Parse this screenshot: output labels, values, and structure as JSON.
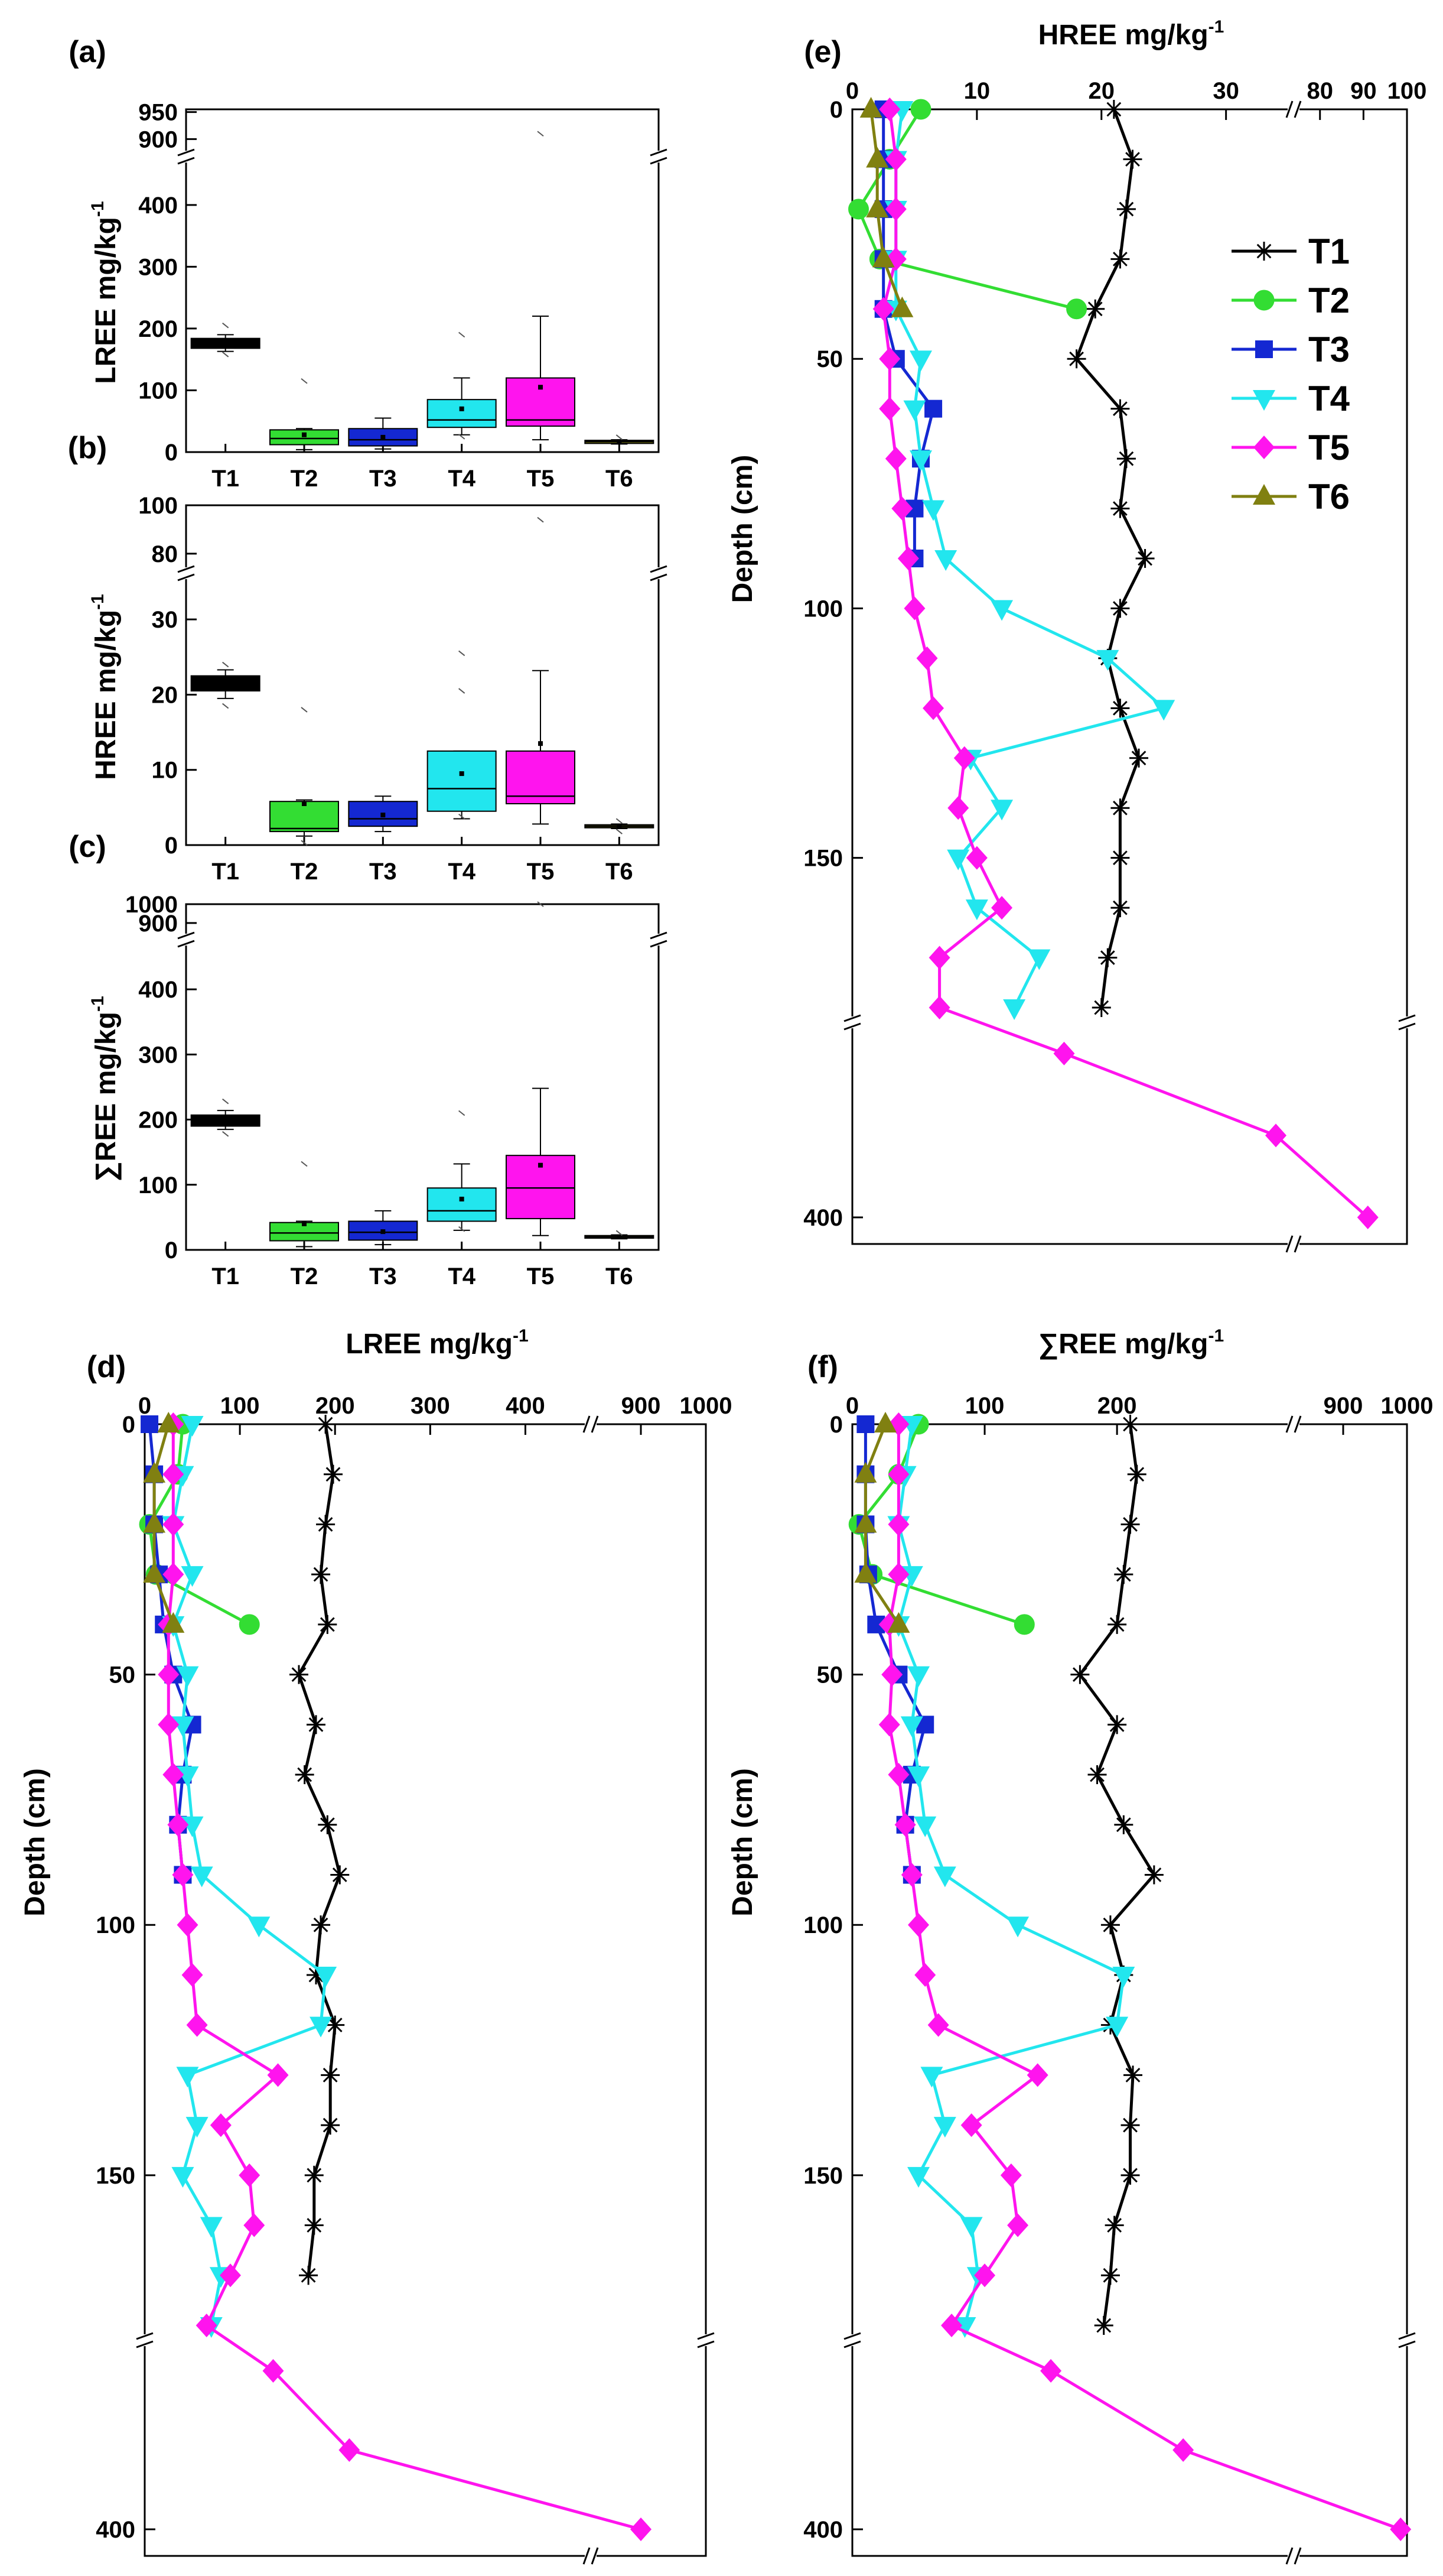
{
  "colors": {
    "T1": "#000000",
    "T2": "#33dd33",
    "T3": "#1428d2",
    "T4": "#22e6ee",
    "T5": "#ff14ee",
    "T6": "#808011"
  },
  "chart_data": [
    {
      "id": "a",
      "panel_label": "(a)",
      "type": "box",
      "ylabel_main": "LREE mg/kg",
      "ylabel_sup": "-1",
      "categories": [
        "T1",
        "T2",
        "T3",
        "T4",
        "T5",
        "T6"
      ],
      "yticks_lower": [
        "0",
        "100",
        "200",
        "300",
        "400"
      ],
      "yticks_upper": [
        "900",
        "950"
      ],
      "ylim_lower": [
        0,
        440
      ],
      "ylim_upper": [
        895,
        955
      ],
      "boxes": [
        {
          "name": "T1",
          "q1": 168,
          "median": 176,
          "q3": 184,
          "whisker_low": 163,
          "whisker_high": 190,
          "mean": 176,
          "extremes": [
            158,
            205
          ]
        },
        {
          "name": "T2",
          "q1": 12,
          "median": 22,
          "q3": 36,
          "whisker_low": 4,
          "whisker_high": 38,
          "mean": 28,
          "extremes": [
            115
          ]
        },
        {
          "name": "T3",
          "q1": 10,
          "median": 20,
          "q3": 38,
          "whisker_low": 5,
          "whisker_high": 55,
          "mean": 24,
          "extremes": []
        },
        {
          "name": "T4",
          "q1": 40,
          "median": 52,
          "q3": 85,
          "whisker_low": 28,
          "whisker_high": 120,
          "mean": 70,
          "extremes": [
            190,
            25
          ]
        },
        {
          "name": "T5",
          "q1": 42,
          "median": 52,
          "q3": 120,
          "whisker_low": 20,
          "whisker_high": 220,
          "mean": 105,
          "extremes": [
            910
          ]
        },
        {
          "name": "T6",
          "q1": 14,
          "median": 17,
          "q3": 19,
          "whisker_low": 13,
          "whisker_high": 20,
          "mean": 17,
          "extremes": [
            24
          ]
        }
      ]
    },
    {
      "id": "b",
      "panel_label": "(b)",
      "type": "box",
      "ylabel_main": "HREE mg/kg",
      "ylabel_sup": "-1",
      "categories": [
        "T1",
        "T2",
        "T3",
        "T4",
        "T5",
        "T6"
      ],
      "yticks_lower": [
        "0",
        "10",
        "20",
        "30"
      ],
      "yticks_upper": [
        "80",
        "100"
      ],
      "ylim_lower": [
        0,
        33
      ],
      "ylim_upper": [
        78,
        100
      ],
      "boxes": [
        {
          "name": "T1",
          "q1": 20.5,
          "median": 21.5,
          "q3": 22.5,
          "whisker_low": 19.5,
          "whisker_high": 23.3,
          "mean": 21.3,
          "extremes": [
            18.5,
            24
          ]
        },
        {
          "name": "T2",
          "q1": 1.8,
          "median": 2.2,
          "q3": 5.8,
          "whisker_low": 1.2,
          "whisker_high": 6,
          "mean": 5.5,
          "extremes": [
            18,
            0.3
          ]
        },
        {
          "name": "T3",
          "q1": 2.5,
          "median": 3.5,
          "q3": 5.8,
          "whisker_low": 1.8,
          "whisker_high": 6.5,
          "mean": 4,
          "extremes": []
        },
        {
          "name": "T4",
          "q1": 4.5,
          "median": 7.5,
          "q3": 12.5,
          "whisker_low": 3.5,
          "whisker_high": 12.5,
          "mean": 9.5,
          "extremes": [
            25.5,
            20.5,
            3.8
          ]
        },
        {
          "name": "T5",
          "q1": 5.5,
          "median": 6.5,
          "q3": 12.5,
          "whisker_low": 2.8,
          "whisker_high": 23.2,
          "mean": 13.5,
          "extremes": [
            94
          ]
        },
        {
          "name": "T6",
          "q1": 2.3,
          "median": 2.5,
          "q3": 2.7,
          "whisker_low": 2.2,
          "whisker_high": 2.8,
          "mean": 2.5,
          "extremes": [
            3.2,
            1.8
          ]
        }
      ]
    },
    {
      "id": "c",
      "panel_label": "(c)",
      "type": "box",
      "ylabel_main": "∑REE mg/kg",
      "ylabel_sup": "-1",
      "categories": [
        "T1",
        "T2",
        "T3",
        "T4",
        "T5",
        "T6"
      ],
      "yticks_lower": [
        "0",
        "100",
        "200",
        "300",
        "400"
      ],
      "yticks_upper": [
        "900",
        "1000"
      ],
      "ylim_lower": [
        0,
        440
      ],
      "ylim_upper": [
        890,
        1000
      ],
      "boxes": [
        {
          "name": "T1",
          "q1": 190,
          "median": 198,
          "q3": 207,
          "whisker_low": 185,
          "whisker_high": 214,
          "mean": 198,
          "extremes": [
            178,
            228
          ]
        },
        {
          "name": "T2",
          "q1": 14,
          "median": 26,
          "q3": 42,
          "whisker_low": 5,
          "whisker_high": 44,
          "mean": 40,
          "extremes": [
            132
          ]
        },
        {
          "name": "T3",
          "q1": 15,
          "median": 27,
          "q3": 44,
          "whisker_low": 8,
          "whisker_high": 60,
          "mean": 28,
          "extremes": []
        },
        {
          "name": "T4",
          "q1": 44,
          "median": 60,
          "q3": 95,
          "whisker_low": 30,
          "whisker_high": 132,
          "mean": 78,
          "extremes": [
            210,
            32
          ]
        },
        {
          "name": "T5",
          "q1": 48,
          "median": 95,
          "q3": 145,
          "whisker_low": 22,
          "whisker_high": 248,
          "mean": 130,
          "extremes": [
            1000
          ]
        },
        {
          "name": "T6",
          "q1": 18,
          "median": 20,
          "q3": 22,
          "whisker_low": 17,
          "whisker_high": 23,
          "mean": 20,
          "extremes": [
            26
          ]
        }
      ]
    },
    {
      "id": "d",
      "panel_label": "(d)",
      "type": "line",
      "title_main": "LREE mg/kg",
      "title_sup": "-1",
      "ylabel": "Depth (cm)",
      "xticks_lower": [
        "0",
        "100",
        "200",
        "300",
        "400"
      ],
      "xticks_upper": [
        "900",
        "1000"
      ],
      "xlim_lower": [
        0,
        450
      ],
      "xlim_upper": [
        850,
        1000
      ],
      "yticks": [
        "0",
        "50",
        "100",
        "150",
        "400"
      ],
      "series": [
        {
          "name": "T1",
          "marker": "star",
          "x": [
            190,
            198,
            190,
            185,
            192,
            162,
            180,
            168,
            192,
            205,
            185,
            180,
            200,
            195,
            195,
            178,
            178,
            172
          ],
          "y": [
            0,
            10,
            20,
            30,
            40,
            50,
            60,
            70,
            80,
            90,
            100,
            110,
            120,
            130,
            140,
            150,
            160,
            170
          ]
        },
        {
          "name": "T2",
          "marker": "circle",
          "x": [
            40,
            35,
            5,
            12,
            110
          ],
          "y": [
            0,
            10,
            20,
            30,
            40
          ]
        },
        {
          "name": "T3",
          "marker": "square",
          "x": [
            5,
            10,
            10,
            15,
            20,
            30,
            50,
            40,
            35,
            40
          ],
          "y": [
            0,
            10,
            20,
            30,
            40,
            50,
            60,
            70,
            80,
            90
          ]
        },
        {
          "name": "T4",
          "marker": "triangle-down",
          "x": [
            50,
            40,
            30,
            50,
            30,
            45,
            40,
            45,
            50,
            60,
            120,
            190,
            185,
            45,
            55,
            40,
            70,
            80,
            70
          ],
          "y": [
            0,
            10,
            20,
            30,
            40,
            50,
            60,
            70,
            80,
            90,
            100,
            110,
            120,
            130,
            140,
            150,
            160,
            170,
            180
          ]
        },
        {
          "name": "T5",
          "marker": "diamond",
          "x": [
            30,
            30,
            30,
            30,
            25,
            25,
            25,
            30,
            35,
            40,
            45,
            50,
            55,
            140,
            80,
            110,
            115,
            90,
            65,
            135,
            215,
            900
          ],
          "y": [
            0,
            10,
            20,
            30,
            40,
            50,
            60,
            70,
            80,
            90,
            100,
            110,
            120,
            130,
            140,
            150,
            160,
            170,
            180,
            200,
            300,
            400
          ]
        },
        {
          "name": "T6",
          "marker": "triangle-up",
          "x": [
            25,
            10,
            10,
            10,
            30
          ],
          "y": [
            0,
            10,
            20,
            30,
            40
          ]
        }
      ]
    },
    {
      "id": "e",
      "panel_label": "(e)",
      "type": "line",
      "title_main": "HREE mg/kg",
      "title_sup": "-1",
      "ylabel": "Depth (cm)",
      "xticks_lower": [
        "0",
        "10",
        "20",
        "30"
      ],
      "xticks_upper": [
        "80",
        "90",
        "100"
      ],
      "xlim_lower": [
        0,
        34
      ],
      "xlim_upper": [
        78,
        100
      ],
      "yticks": [
        "0",
        "50",
        "100",
        "150",
        "400"
      ],
      "series": [
        {
          "name": "T1",
          "marker": "star",
          "x": [
            21,
            22.5,
            22,
            21.5,
            19.5,
            18,
            21.5,
            22,
            21.5,
            23.5,
            21.5,
            20.5,
            21.5,
            23,
            21.5,
            21.5,
            21.5,
            20.5,
            20
          ],
          "y": [
            0,
            10,
            20,
            30,
            40,
            50,
            60,
            70,
            80,
            90,
            100,
            110,
            120,
            130,
            140,
            150,
            160,
            170,
            180
          ]
        },
        {
          "name": "T2",
          "marker": "circle",
          "x": [
            5.5,
            3,
            0.5,
            2.2,
            18
          ],
          "y": [
            0,
            10,
            20,
            30,
            40
          ]
        },
        {
          "name": "T3",
          "marker": "square",
          "x": [
            2.5,
            2.5,
            2.5,
            2.5,
            2.5,
            3.5,
            6.5,
            5.5,
            5,
            5
          ],
          "y": [
            0,
            10,
            20,
            30,
            40,
            50,
            60,
            70,
            80,
            90
          ]
        },
        {
          "name": "T4",
          "marker": "triangle-down",
          "x": [
            4,
            3.5,
            3.5,
            3.5,
            3.5,
            5.5,
            5,
            5.5,
            6.5,
            7.5,
            12,
            20.5,
            25,
            9.5,
            12,
            8.5,
            10,
            15,
            13
          ],
          "y": [
            0,
            10,
            20,
            30,
            40,
            50,
            60,
            70,
            80,
            90,
            100,
            110,
            120,
            130,
            140,
            150,
            160,
            170,
            180
          ]
        },
        {
          "name": "T5",
          "marker": "diamond",
          "x": [
            3,
            3.5,
            3.5,
            3.5,
            2.5,
            3,
            3,
            3.5,
            4,
            4.5,
            5,
            6,
            6.5,
            9,
            8.5,
            10,
            12,
            7,
            7,
            17,
            34,
            91
          ],
          "y": [
            0,
            10,
            20,
            30,
            40,
            50,
            60,
            70,
            80,
            90,
            100,
            110,
            120,
            130,
            140,
            150,
            160,
            170,
            180,
            200,
            300,
            400
          ]
        },
        {
          "name": "T6",
          "marker": "triangle-up",
          "x": [
            1.5,
            2,
            2,
            2.5,
            4
          ],
          "y": [
            0,
            10,
            20,
            30,
            40
          ]
        }
      ],
      "legend": [
        "T1",
        "T2",
        "T3",
        "T4",
        "T5",
        "T6"
      ],
      "legend_position": "top-right"
    },
    {
      "id": "f",
      "panel_label": "(f)",
      "type": "line",
      "title_main": "∑REE mg/kg",
      "title_sup": "-1",
      "ylabel": "Depth (cm)",
      "xticks_lower": [
        "0",
        "100",
        "200"
      ],
      "xticks_upper": [
        "900",
        "1000"
      ],
      "xlim_lower": [
        0,
        320
      ],
      "xlim_upper": [
        850,
        1000
      ],
      "yticks": [
        "0",
        "50",
        "100",
        "150",
        "400"
      ],
      "series": [
        {
          "name": "T1",
          "marker": "star",
          "x": [
            210,
            215,
            210,
            205,
            200,
            172,
            200,
            185,
            205,
            228,
            195,
            205,
            195,
            212,
            210,
            210,
            198,
            195,
            190
          ],
          "y": [
            0,
            10,
            20,
            30,
            40,
            50,
            60,
            70,
            80,
            90,
            100,
            110,
            120,
            130,
            140,
            150,
            160,
            170,
            180
          ]
        },
        {
          "name": "T2",
          "marker": "circle",
          "x": [
            50,
            35,
            5,
            15,
            130
          ],
          "y": [
            0,
            10,
            20,
            30,
            40
          ]
        },
        {
          "name": "T3",
          "marker": "square",
          "x": [
            10,
            10,
            10,
            12,
            18,
            35,
            55,
            45,
            40,
            45
          ],
          "y": [
            0,
            10,
            20,
            30,
            40,
            50,
            60,
            70,
            80,
            90
          ]
        },
        {
          "name": "T4",
          "marker": "triangle-down",
          "x": [
            45,
            40,
            35,
            45,
            35,
            50,
            45,
            50,
            55,
            70,
            125,
            205,
            200,
            60,
            70,
            50,
            90,
            95,
            85
          ],
          "y": [
            0,
            10,
            20,
            30,
            40,
            50,
            60,
            70,
            80,
            90,
            100,
            110,
            120,
            130,
            140,
            150,
            160,
            170,
            180
          ]
        },
        {
          "name": "T5",
          "marker": "diamond",
          "x": [
            35,
            35,
            35,
            35,
            28,
            30,
            28,
            35,
            40,
            45,
            50,
            55,
            65,
            140,
            90,
            120,
            125,
            100,
            75,
            150,
            250,
            990
          ],
          "y": [
            0,
            10,
            20,
            30,
            40,
            50,
            60,
            70,
            80,
            90,
            100,
            110,
            120,
            130,
            140,
            150,
            160,
            170,
            180,
            200,
            300,
            400
          ]
        },
        {
          "name": "T6",
          "marker": "triangle-up",
          "x": [
            25,
            10,
            10,
            10,
            35
          ],
          "y": [
            0,
            10,
            20,
            30,
            40
          ]
        }
      ]
    }
  ]
}
